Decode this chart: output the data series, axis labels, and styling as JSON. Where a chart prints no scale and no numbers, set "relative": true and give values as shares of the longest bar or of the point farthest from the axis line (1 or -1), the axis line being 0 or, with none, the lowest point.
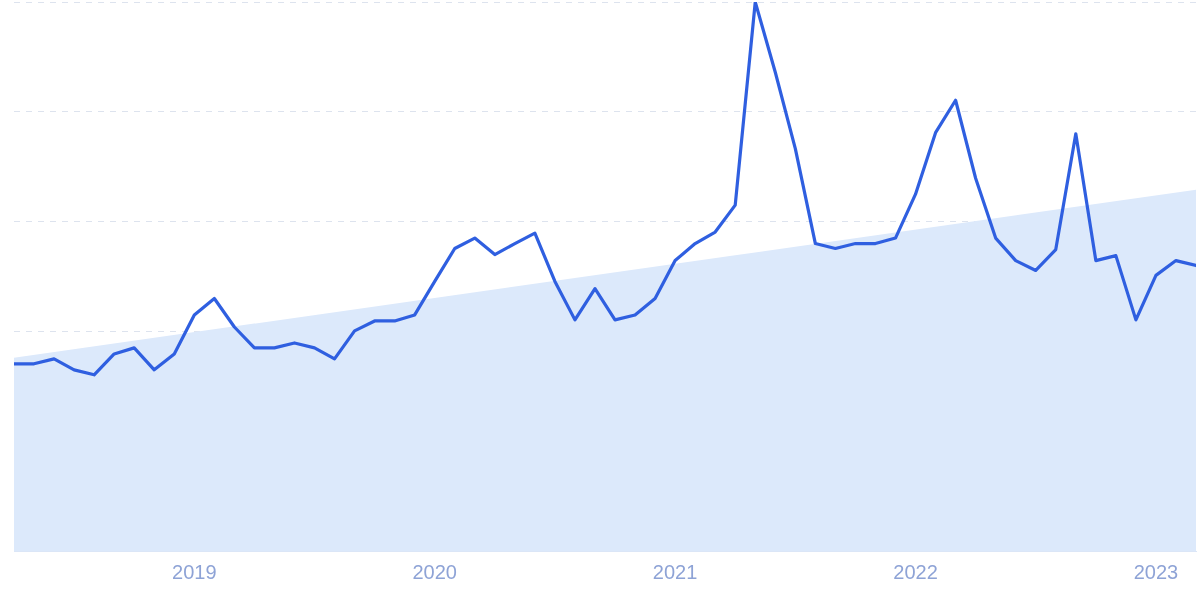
{
  "chart_data": {
    "type": "line",
    "relative": true,
    "x": [
      "2018-04",
      "2018-05",
      "2018-06",
      "2018-07",
      "2018-08",
      "2018-09",
      "2018-10",
      "2018-11",
      "2018-12",
      "2019-01",
      "2019-02",
      "2019-03",
      "2019-04",
      "2019-05",
      "2019-06",
      "2019-07",
      "2019-08",
      "2019-09",
      "2019-10",
      "2019-11",
      "2019-12",
      "2020-01",
      "2020-02",
      "2020-03",
      "2020-04",
      "2020-05",
      "2020-06",
      "2020-07",
      "2020-08",
      "2020-09",
      "2020-10",
      "2020-11",
      "2020-12",
      "2021-01",
      "2021-02",
      "2021-03",
      "2021-04",
      "2021-05",
      "2021-06",
      "2021-07",
      "2021-08",
      "2021-09",
      "2021-10",
      "2021-11",
      "2021-12",
      "2022-01",
      "2022-02",
      "2022-03",
      "2022-04",
      "2022-05",
      "2022-06",
      "2022-07",
      "2022-08",
      "2022-09",
      "2022-10",
      "2022-11",
      "2022-12",
      "2023-01",
      "2023-02",
      "2023-03"
    ],
    "series": [
      {
        "type": "area",
        "color": "#dce9fb",
        "x": [
          "2018-04",
          "2023-03"
        ],
        "values": [
          0.352,
          0.658
        ]
      },
      {
        "color": "#2f5fe0",
        "values": [
          0.341,
          0.341,
          0.35,
          0.33,
          0.321,
          0.359,
          0.37,
          0.33,
          0.359,
          0.43,
          0.46,
          0.408,
          0.37,
          0.37,
          0.379,
          0.37,
          0.35,
          0.401,
          0.419,
          0.419,
          0.43,
          0.491,
          0.551,
          0.57,
          0.54,
          0.56,
          0.579,
          0.491,
          0.421,
          0.478,
          0.421,
          0.43,
          0.46,
          0.529,
          0.56,
          0.581,
          0.63,
          1,
          0.872,
          0.733,
          0.56,
          0.551,
          0.56,
          0.56,
          0.57,
          0.65,
          0.762,
          0.821,
          0.679,
          0.57,
          0.529,
          0.511,
          0.549,
          0.76,
          0.529,
          0.538,
          0.421,
          0.502,
          0.529,
          0.52
        ]
      }
    ],
    "xlim": [
      "2018-04",
      "2023-03"
    ],
    "xticks": [
      "2019",
      "2020",
      "2021",
      "2022",
      "2023"
    ],
    "grid": "y",
    "legend": false,
    "marker": "none",
    "line_style": "solid"
  }
}
